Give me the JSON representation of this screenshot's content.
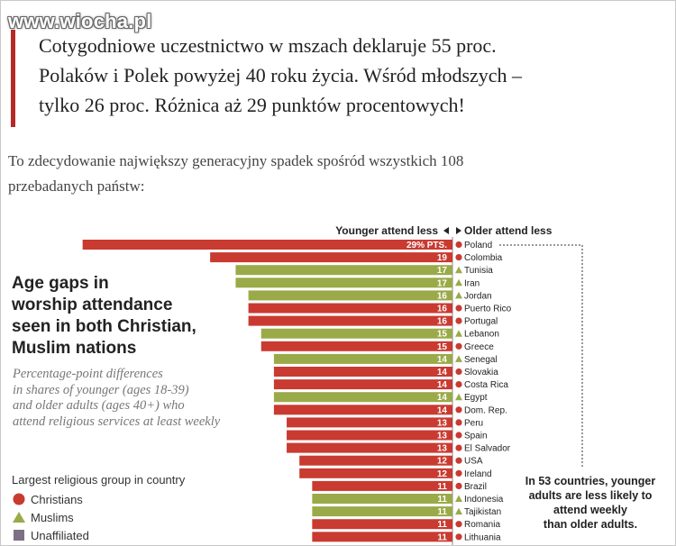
{
  "watermark": "www.wiocha.pl",
  "quote": {
    "lines": [
      "Cotygodniowe uczestnictwo w mszach deklaruje 55 proc.",
      "Polaków i Polek powyżej 40 roku życia. Wśród młodszych –",
      "tylko 26 proc. Różnica aż 29 punktów procentowych!"
    ]
  },
  "intro": {
    "lines": [
      "To zdecydowanie największy generacyjny spadek spośród wszystkich 108",
      "przebadanych państw:"
    ]
  },
  "chart": {
    "title_lines": [
      "Age gaps in",
      "worship attendance",
      "seen in both Christian,",
      "Muslim nations"
    ],
    "subtitle_lines": [
      "Percentage-point differences",
      "in shares of younger (ages 18-39)",
      "and older adults (ages 40+) who",
      "attend religious services at least weekly"
    ],
    "header_left": "Younger attend less",
    "header_right": "Older attend less",
    "legend": {
      "title": "Largest religious group in country",
      "items": [
        {
          "label": "Christians",
          "group": "christian"
        },
        {
          "label": "Muslims",
          "group": "muslim"
        },
        {
          "label": "Unaffiliated",
          "group": "unaffiliated"
        }
      ]
    },
    "annotation_lines": [
      "In 53 countries, younger",
      "adults are less likely to",
      "attend weekly",
      "than older adults."
    ]
  },
  "colors": {
    "christian": "#c93a31",
    "muslim": "#9aaa48",
    "unaffiliated": "#7c6f86",
    "bar_label": "#ffffff",
    "quote_bar": "#b52a26"
  },
  "chart_data": {
    "type": "bar",
    "orientation": "horizontal",
    "first_value_label": "29% PTS.",
    "xlim": [
      0,
      29
    ],
    "categories": [
      "Poland",
      "Colombia",
      "Tunisia",
      "Iran",
      "Jordan",
      "Puerto Rico",
      "Portugal",
      "Lebanon",
      "Greece",
      "Senegal",
      "Slovakia",
      "Costa Rica",
      "Egypt",
      "Dom. Rep.",
      "Peru",
      "Spain",
      "El Salvador",
      "USA",
      "Ireland",
      "Brazil",
      "Indonesia",
      "Tajikistan",
      "Romania",
      "Lithuania"
    ],
    "values": [
      29,
      19,
      17,
      17,
      16,
      16,
      16,
      15,
      15,
      14,
      14,
      14,
      14,
      14,
      13,
      13,
      13,
      12,
      12,
      11,
      11,
      11,
      11,
      11
    ],
    "groups": [
      "christian",
      "christian",
      "muslim",
      "muslim",
      "muslim",
      "christian",
      "christian",
      "muslim",
      "christian",
      "muslim",
      "christian",
      "christian",
      "muslim",
      "christian",
      "christian",
      "christian",
      "christian",
      "christian",
      "christian",
      "christian",
      "muslim",
      "muslim",
      "christian",
      "christian"
    ]
  }
}
